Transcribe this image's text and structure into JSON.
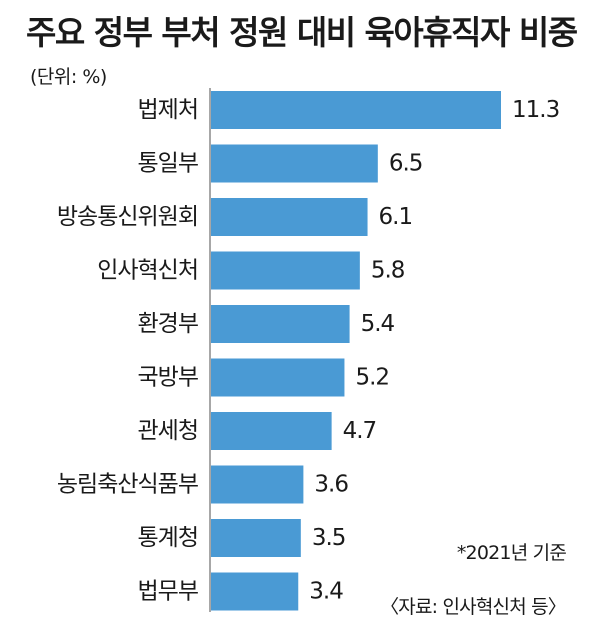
{
  "chart_data": {
    "type": "bar",
    "orientation": "horizontal",
    "title": "주요 정부 부처 정원 대비 육아휴직자 비중",
    "unit_label": "(단위: %)",
    "categories": [
      "법제처",
      "통일부",
      "방송통신위원회",
      "인사혁신처",
      "환경부",
      "국방부",
      "관세청",
      "농림축산식품부",
      "통계청",
      "법무부"
    ],
    "values": [
      11.3,
      6.5,
      6.1,
      5.8,
      5.4,
      5.2,
      4.7,
      3.6,
      3.5,
      3.4
    ],
    "value_labels": [
      "11.3",
      "6.5",
      "6.1",
      "5.8",
      "5.4",
      "5.2",
      "4.7",
      "3.6",
      "3.5",
      "3.4"
    ],
    "bar_color": "#4a9ad4",
    "notes": [
      "*2021년 기준",
      "〈자료: 인사혁신처 등〉"
    ]
  }
}
